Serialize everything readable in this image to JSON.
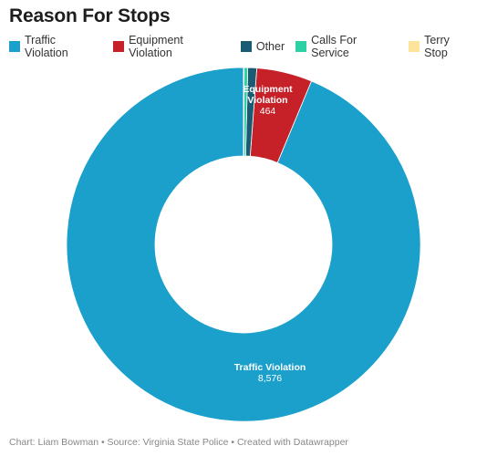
{
  "title": "Reason For Stops",
  "footer": "Chart: Liam Bowman • Source: Virginia State Police • Created with Datawrapper",
  "chart_data": {
    "type": "pie",
    "donut": true,
    "legend_position": "top-left",
    "slices": [
      {
        "name": "Traffic Violation",
        "value": 8576,
        "color": "#1aa0cb",
        "label_lines": [
          "Traffic Violation"
        ],
        "value_label": "8,576"
      },
      {
        "name": "Equipment Violation",
        "value": 464,
        "color": "#c62128",
        "label_lines": [
          "Equipment",
          "Violation"
        ],
        "value_label": "464"
      },
      {
        "name": "Other",
        "value": 75,
        "color": "#1b5a73",
        "label_lines": [],
        "value_label": ""
      },
      {
        "name": "Calls For Service",
        "value": 30,
        "color": "#2ed1a4",
        "label_lines": [],
        "value_label": ""
      },
      {
        "name": "Terry Stop",
        "value": 5,
        "color": "#fde49a",
        "label_lines": [],
        "value_label": ""
      }
    ]
  }
}
